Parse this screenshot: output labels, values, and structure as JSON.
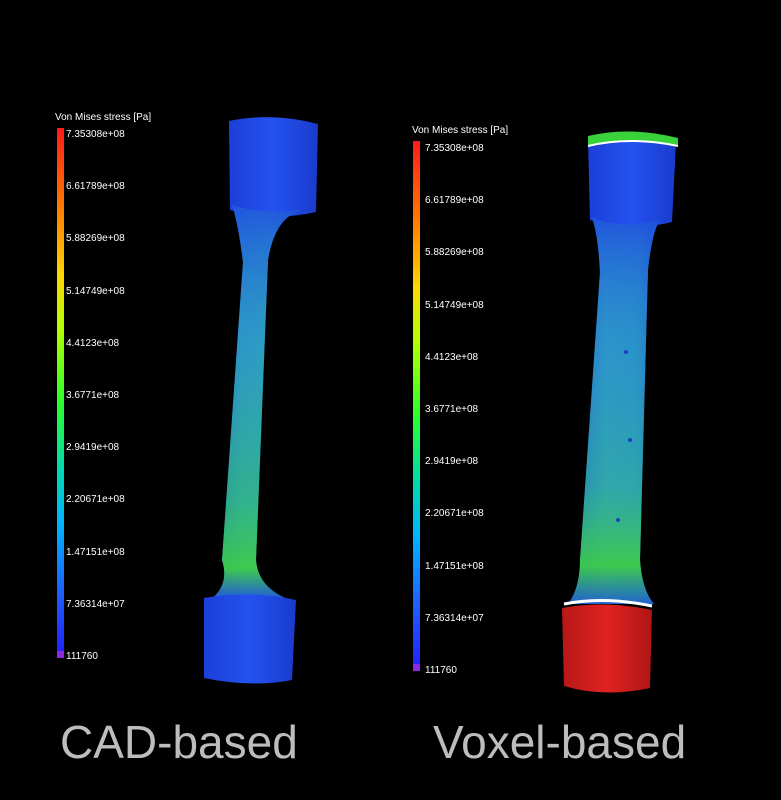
{
  "left_panel": {
    "legend_title": "Von Mises stress [Pa]",
    "ticks": [
      "7.35308e+08",
      "6.61789e+08",
      "5.88269e+08",
      "5.14749e+08",
      "4.4123e+08",
      "3.6771e+08",
      "2.9419e+08",
      "2.20671e+08",
      "1.47151e+08",
      "7.36314e+07",
      "111760"
    ],
    "caption": "CAD-based"
  },
  "right_panel": {
    "legend_title": "Von Mises stress [Pa]",
    "ticks": [
      "7.35308e+08",
      "6.61789e+08",
      "5.88269e+08",
      "5.14749e+08",
      "4.4123e+08",
      "3.6771e+08",
      "2.9419e+08",
      "2.20671e+08",
      "1.47151e+08",
      "7.36314e+07",
      "111760"
    ],
    "caption": "Voxel-based"
  },
  "colors": {
    "background": "#000000",
    "low_stress": "#1f3fe0",
    "mid_stress": "#3fd03f",
    "high_stress": "#e02020",
    "caption_text": "#bdbdbd"
  }
}
